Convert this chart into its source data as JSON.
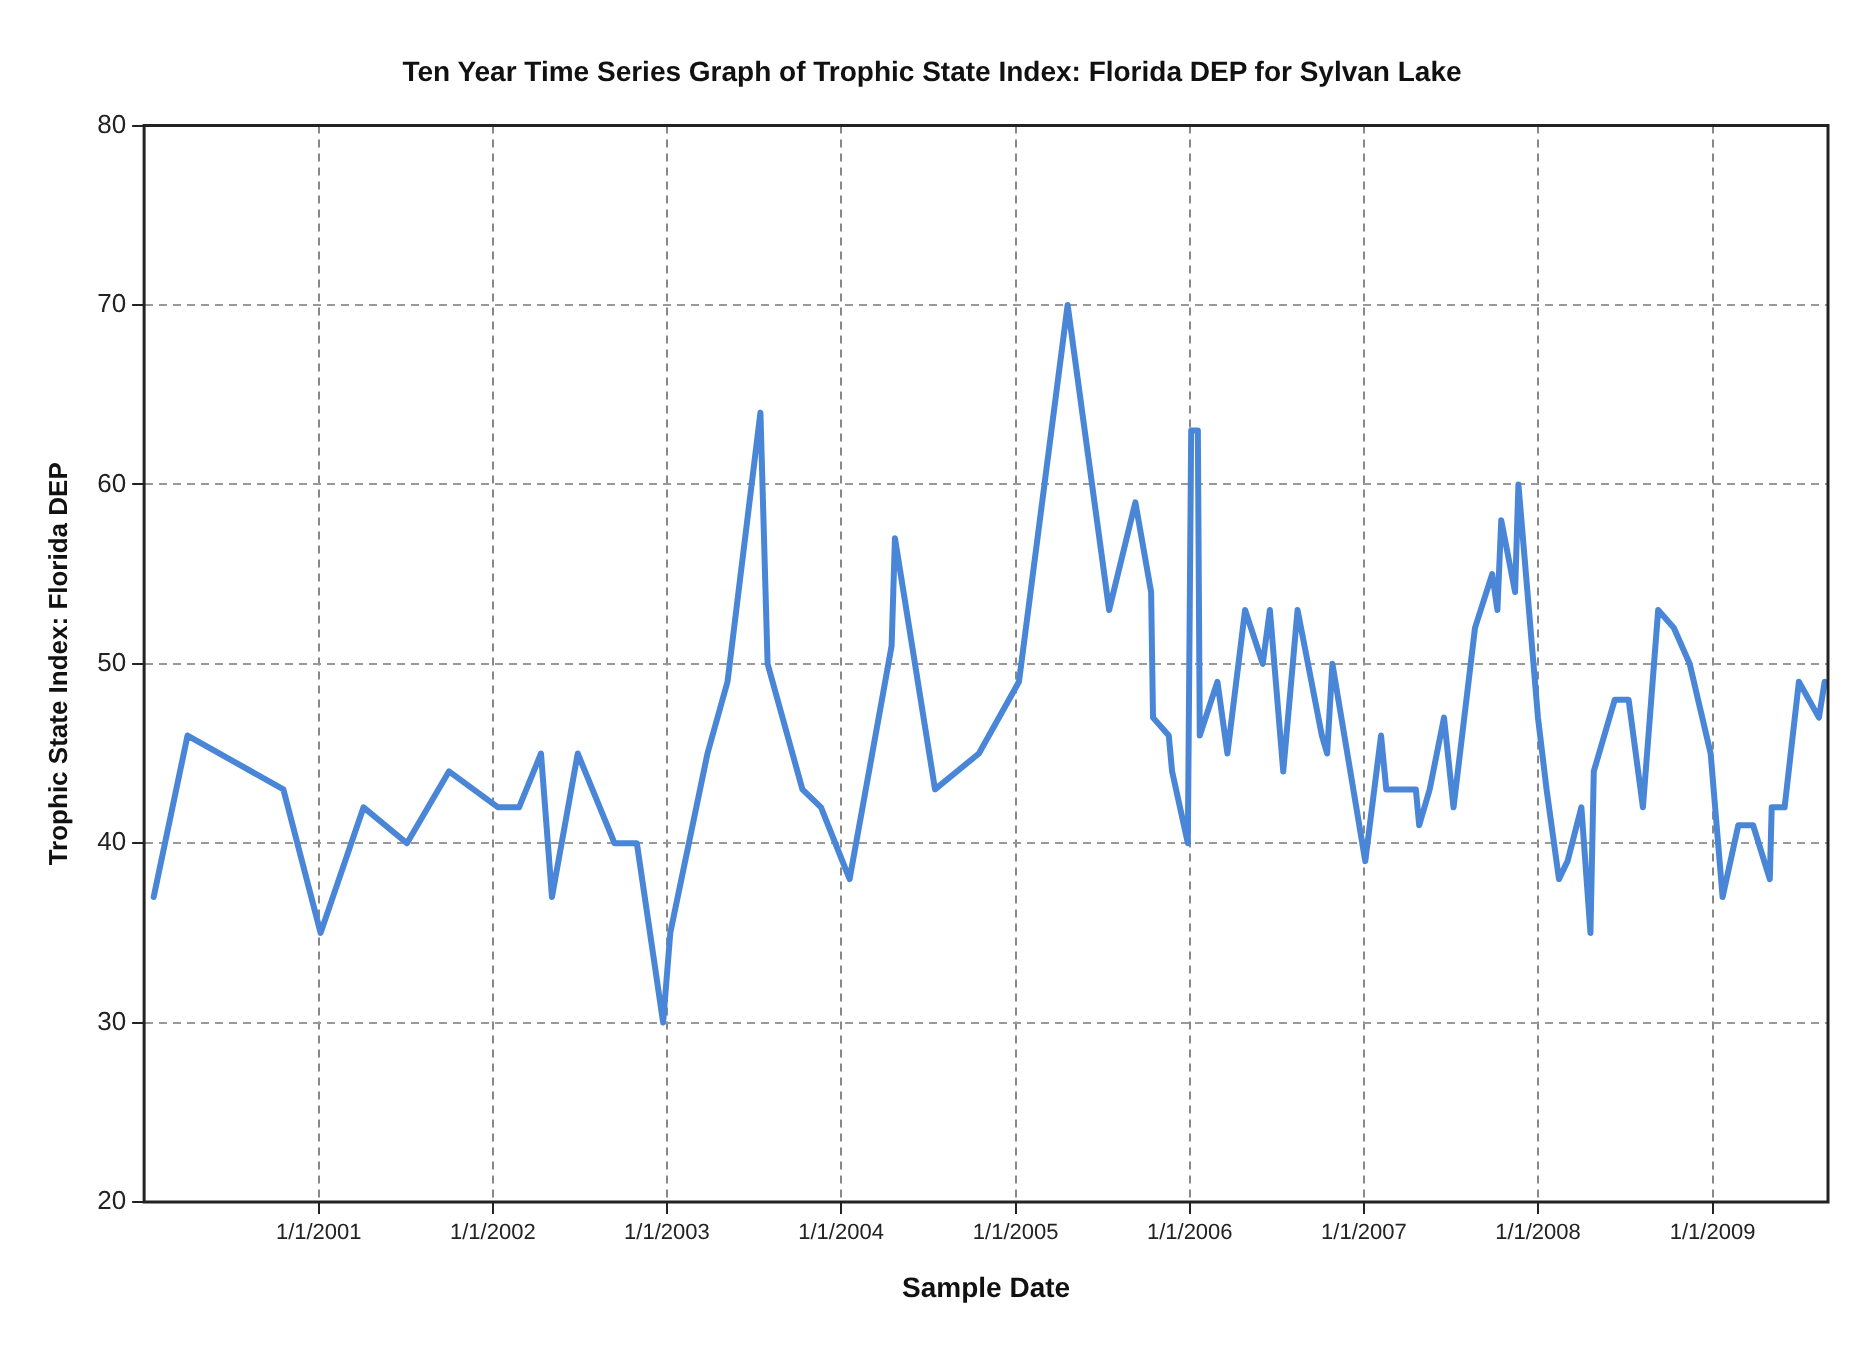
{
  "chart_data": {
    "type": "line",
    "title": "Ten Year Time Series Graph of Trophic State Index: Florida DEP for Sylvan Lake",
    "xlabel": "Sample Date",
    "ylabel": "Trophic State Index: Florida DEP",
    "x": [
      "2000-01-21",
      "2000-04-01",
      "2000-10-19",
      "2001-01-05",
      "2001-04-05",
      "2001-07-05",
      "2001-10-01",
      "2002-01-12",
      "2002-02-25",
      "2002-04-12",
      "2002-05-05",
      "2002-06-28",
      "2002-09-13",
      "2002-10-30",
      "2002-12-24",
      "2003-01-08",
      "2003-03-27",
      "2003-05-08",
      "2003-07-16",
      "2003-07-31",
      "2003-10-12",
      "2003-11-20",
      "2004-01-19",
      "2004-04-16",
      "2004-04-23",
      "2004-07-16",
      "2004-10-16",
      "2005-01-08",
      "2005-04-20",
      "2005-07-16",
      "2005-09-09",
      "2005-10-12",
      "2005-10-16",
      "2005-11-18",
      "2005-11-25",
      "2005-12-28",
      "2006-01-04",
      "2006-01-18",
      "2006-01-22",
      "2006-02-28",
      "2006-03-21",
      "2006-04-27",
      "2006-06-03",
      "2006-06-18",
      "2006-07-16",
      "2006-08-15",
      "2006-10-05",
      "2006-10-16",
      "2006-10-27",
      "2007-01-04",
      "2007-02-06",
      "2007-02-17",
      "2007-04-20",
      "2007-04-27",
      "2007-05-19",
      "2007-06-18",
      "2007-07-08",
      "2007-08-22",
      "2007-09-27",
      "2007-10-08",
      "2007-10-16",
      "2007-11-14",
      "2007-11-21",
      "2008-01-01",
      "2008-01-19",
      "2008-02-14",
      "2008-03-03",
      "2008-04-01",
      "2008-04-20",
      "2008-04-27",
      "2008-06-10",
      "2008-07-09",
      "2008-08-08",
      "2008-09-09",
      "2008-10-12",
      "2008-11-14",
      "2008-12-28",
      "2009-01-22",
      "2009-02-24",
      "2009-03-27",
      "2009-05-01",
      "2009-05-05",
      "2009-06-01",
      "2009-07-01",
      "2009-08-12",
      "2009-08-24"
    ],
    "series": [
      {
        "color": "#4a86d8",
        "values": [
          37,
          46,
          43,
          35,
          42,
          40,
          44,
          42,
          42,
          45,
          37,
          45,
          40,
          40,
          30,
          35,
          45,
          49,
          64,
          50,
          43,
          42,
          38,
          51,
          57,
          43,
          45,
          49,
          70,
          53,
          59,
          54,
          47,
          46,
          44,
          40,
          63,
          63,
          46,
          49,
          45,
          53,
          50,
          53,
          44,
          53,
          46,
          45,
          50,
          39,
          46,
          43,
          43,
          41,
          43,
          47,
          42,
          52,
          55,
          53,
          58,
          54,
          60,
          47,
          43,
          38,
          39,
          42,
          35,
          44,
          48,
          48,
          42,
          53,
          52,
          50,
          45,
          37,
          41,
          41,
          38,
          42,
          42,
          49,
          47,
          49
        ]
      }
    ],
    "xlim": [
      "2000-01-01",
      "2009-08-31"
    ],
    "xticks": [
      {
        "value": "2001-01-01",
        "label": "1/1/2001"
      },
      {
        "value": "2002-01-01",
        "label": "1/1/2002"
      },
      {
        "value": "2003-01-01",
        "label": "1/1/2003"
      },
      {
        "value": "2004-01-01",
        "label": "1/1/2004"
      },
      {
        "value": "2005-01-01",
        "label": "1/1/2005"
      },
      {
        "value": "2006-01-01",
        "label": "1/1/2006"
      },
      {
        "value": "2007-01-01",
        "label": "1/1/2007"
      },
      {
        "value": "2008-01-01",
        "label": "1/1/2008"
      },
      {
        "value": "2009-01-01",
        "label": "1/1/2009"
      }
    ],
    "ylim": [
      20,
      80
    ],
    "yticks": [
      20,
      30,
      40,
      50,
      60,
      70,
      80
    ],
    "grid": true,
    "legend": false,
    "marker": "none",
    "line_style": "solid"
  }
}
